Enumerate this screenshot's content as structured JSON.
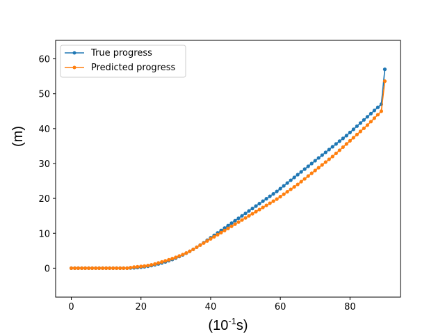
{
  "chart_data": {
    "type": "line",
    "xlabel": "(10",
    "xlabel_exponent": "-1",
    "xlabel_suffix": "s)",
    "ylabel": "(m)",
    "xlim": [
      -4.5,
      94.5
    ],
    "ylim": [
      -8.3,
      65.3
    ],
    "xticks": [
      0,
      20,
      40,
      60,
      80
    ],
    "yticks": [
      0,
      10,
      20,
      30,
      40,
      50,
      60
    ],
    "grid": false,
    "legend_position": "upper-left",
    "series": [
      {
        "name": "True progress",
        "color": "#1f77b4",
        "x": [
          0,
          1,
          2,
          3,
          4,
          5,
          6,
          7,
          8,
          9,
          10,
          11,
          12,
          13,
          14,
          15,
          16,
          17,
          18,
          19,
          20,
          21,
          22,
          23,
          24,
          25,
          26,
          27,
          28,
          29,
          30,
          31,
          32,
          33,
          34,
          35,
          36,
          37,
          38,
          39,
          40,
          41,
          42,
          43,
          44,
          45,
          46,
          47,
          48,
          49,
          50,
          51,
          52,
          53,
          54,
          55,
          56,
          57,
          58,
          59,
          60,
          61,
          62,
          63,
          64,
          65,
          66,
          67,
          68,
          69,
          70,
          71,
          72,
          73,
          74,
          75,
          76,
          77,
          78,
          79,
          80,
          81,
          82,
          83,
          84,
          85,
          86,
          87,
          88,
          89,
          90
        ],
        "y": [
          0,
          0,
          0,
          0,
          0,
          0,
          0,
          0,
          0,
          0,
          0,
          0,
          0,
          0,
          0,
          0,
          0,
          0.05,
          0.1,
          0.18,
          0.28,
          0.4,
          0.55,
          0.75,
          0.97,
          1.22,
          1.5,
          1.8,
          2.13,
          2.5,
          2.9,
          3.33,
          3.8,
          4.3,
          4.83,
          5.4,
          6.0,
          6.63,
          7.3,
          8.0,
          8.7,
          9.4,
          10.1,
          10.8,
          11.5,
          12.2,
          12.9,
          13.6,
          14.3,
          15.0,
          15.7,
          16.4,
          17.1,
          17.8,
          18.5,
          19.2,
          19.9,
          20.6,
          21.3,
          22.0,
          22.8,
          23.6,
          24.4,
          25.2,
          26.0,
          26.8,
          27.6,
          28.4,
          29.2,
          30.0,
          30.8,
          31.6,
          32.4,
          33.2,
          34.0,
          34.8,
          35.6,
          36.4,
          37.2,
          38.0,
          38.9,
          39.8,
          40.7,
          41.6,
          42.5,
          43.4,
          44.3,
          45.2,
          46.1,
          47.0,
          57.0
        ]
      },
      {
        "name": "Predicted progress",
        "color": "#ff7f0e",
        "x": [
          0,
          1,
          2,
          3,
          4,
          5,
          6,
          7,
          8,
          9,
          10,
          11,
          12,
          13,
          14,
          15,
          16,
          17,
          18,
          19,
          20,
          21,
          22,
          23,
          24,
          25,
          26,
          27,
          28,
          29,
          30,
          31,
          32,
          33,
          34,
          35,
          36,
          37,
          38,
          39,
          40,
          41,
          42,
          43,
          44,
          45,
          46,
          47,
          48,
          49,
          50,
          51,
          52,
          53,
          54,
          55,
          56,
          57,
          58,
          59,
          60,
          61,
          62,
          63,
          64,
          65,
          66,
          67,
          68,
          69,
          70,
          71,
          72,
          73,
          74,
          75,
          76,
          77,
          78,
          79,
          80,
          81,
          82,
          83,
          84,
          85,
          86,
          87,
          88,
          89,
          90
        ],
        "y": [
          0,
          0,
          0,
          0,
          0,
          0,
          0,
          0,
          0,
          0,
          0,
          0,
          0,
          0,
          0,
          0,
          0,
          0.15,
          0.3,
          0.4,
          0.5,
          0.6,
          0.75,
          0.95,
          1.2,
          1.5,
          1.8,
          2.1,
          2.4,
          2.75,
          3.1,
          3.5,
          3.9,
          4.35,
          4.85,
          5.4,
          6.0,
          6.6,
          7.2,
          7.8,
          8.4,
          9.0,
          9.6,
          10.2,
          10.8,
          11.4,
          12.0,
          12.6,
          13.2,
          13.8,
          14.4,
          15.0,
          15.6,
          16.2,
          16.8,
          17.4,
          18.0,
          18.6,
          19.2,
          19.8,
          20.5,
          21.2,
          21.9,
          22.6,
          23.3,
          24.0,
          24.8,
          25.6,
          26.4,
          27.2,
          28.0,
          28.8,
          29.6,
          30.4,
          31.2,
          32.0,
          32.9,
          33.8,
          34.7,
          35.6,
          36.5,
          37.4,
          38.3,
          39.2,
          40.1,
          41.0,
          42.0,
          43.0,
          44.0,
          45.0,
          53.6
        ]
      }
    ]
  }
}
